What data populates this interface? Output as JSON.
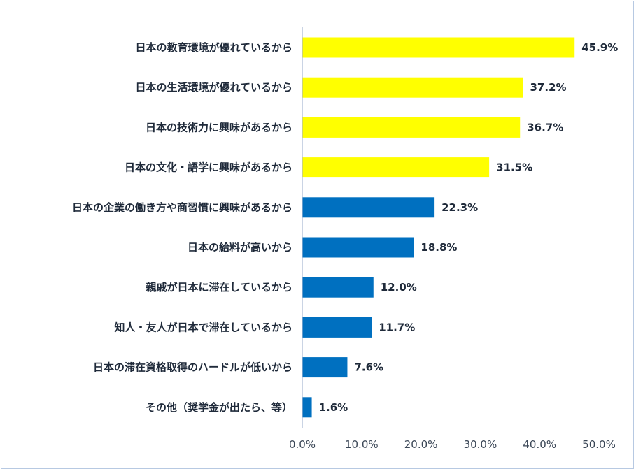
{
  "chart_data": {
    "type": "bar",
    "orientation": "horizontal",
    "categories": [
      "日本の教育環境が優れているから",
      "日本の生活環境が優れているから",
      "日本の技術力に興味があるから",
      "日本の文化・語学に興味があるから",
      "日本の企業の働き方や商習慣に興味があるから",
      "日本の給料が高いから",
      "親戚が日本に滞在しているから",
      "知人・友人が日本で滞在しているから",
      "日本の滞在資格取得のハードルが低いから",
      "その他（奨学金が出たら、等）"
    ],
    "values": [
      45.9,
      37.2,
      36.7,
      31.5,
      22.3,
      18.8,
      12.0,
      11.7,
      7.6,
      1.6
    ],
    "value_labels": [
      "45.9%",
      "37.2%",
      "36.7%",
      "31.5%",
      "22.3%",
      "18.8%",
      "12.0%",
      "11.7%",
      "7.6%",
      "1.6%"
    ],
    "bar_colors": [
      "#ffff00",
      "#ffff00",
      "#ffff00",
      "#ffff00",
      "#0070c0",
      "#0070c0",
      "#0070c0",
      "#0070c0",
      "#0070c0",
      "#0070c0"
    ],
    "xlim": [
      0,
      50
    ],
    "xticks": [
      0,
      10,
      20,
      30,
      40,
      50
    ],
    "xtick_labels": [
      "0.0%",
      "10.0%",
      "20.0%",
      "30.0%",
      "40.0%",
      "50.0%"
    ],
    "grid": false,
    "axis_color": "#a6b8d3"
  }
}
